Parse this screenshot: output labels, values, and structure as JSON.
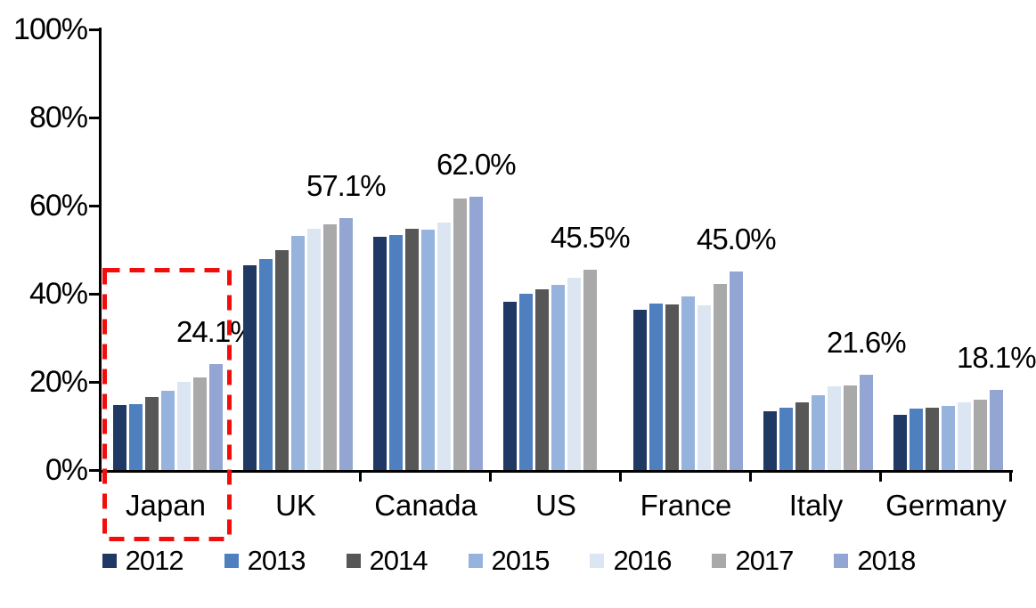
{
  "chart_data": {
    "type": "bar",
    "title": "",
    "xlabel": "",
    "ylabel": "",
    "ylim": [
      0,
      100
    ],
    "grid": false,
    "legend_position": "bottom",
    "y_tick_values": [
      0,
      20,
      40,
      60,
      80,
      100
    ],
    "y_tick_labels": [
      "0%",
      "20%",
      "40%",
      "60%",
      "80%",
      "100%"
    ],
    "categories": [
      "Japan",
      "UK",
      "Canada",
      "US",
      "France",
      "Italy",
      "Germany"
    ],
    "series": [
      {
        "name": "2012",
        "color": "#1F3864",
        "values": [
          14.7,
          46.4,
          53.0,
          38.2,
          36.4,
          13.3,
          12.6
        ]
      },
      {
        "name": "2013",
        "color": "#4E7FBE",
        "values": [
          14.9,
          47.8,
          53.4,
          40.0,
          37.7,
          14.1,
          13.9
        ]
      },
      {
        "name": "2014",
        "color": "#575757",
        "values": [
          16.6,
          50.0,
          54.8,
          41.1,
          37.6,
          15.4,
          14.2
        ]
      },
      {
        "name": "2015",
        "color": "#95B3DD",
        "values": [
          18.0,
          53.2,
          54.6,
          42.0,
          39.3,
          16.9,
          14.6
        ]
      },
      {
        "name": "2016",
        "color": "#DCE6F2",
        "values": [
          20.1,
          54.8,
          56.1,
          43.6,
          37.3,
          19.0,
          15.3
        ]
      },
      {
        "name": "2017",
        "color": "#A9A9A9",
        "values": [
          21.0,
          55.7,
          61.6,
          45.5,
          42.3,
          19.2,
          15.9
        ]
      },
      {
        "name": "2018",
        "color": "#93A5D3",
        "values": [
          24.1,
          57.1,
          62.0,
          null,
          45.0,
          21.6,
          18.1
        ]
      }
    ],
    "data_labels": [
      "24.1%",
      "57.1%",
      "62.0%",
      "45.5%",
      "45.0%",
      "21.6%",
      "18.1%"
    ],
    "annotations": {
      "highlight": {
        "target_category": "Japan",
        "shape": "dashed-rectangle",
        "color": "#F20D0D"
      }
    }
  }
}
